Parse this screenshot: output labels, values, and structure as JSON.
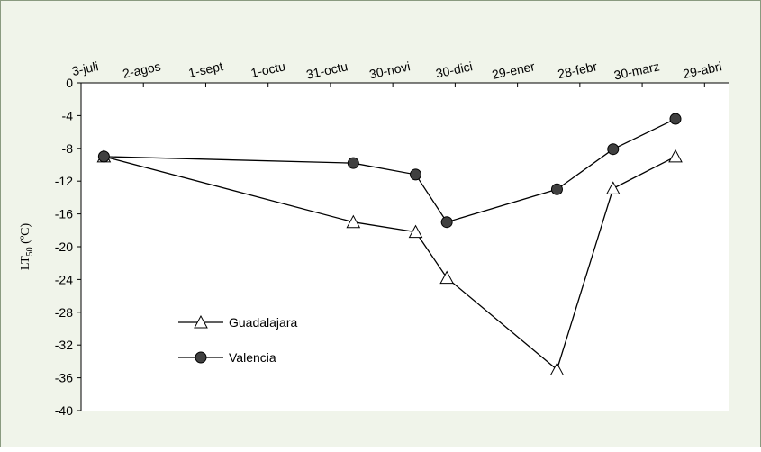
{
  "chart_data": {
    "type": "line",
    "y_label": {
      "text": "LT",
      "subscript": "50",
      "suffix": " (ºC)"
    },
    "x": [
      11,
      131,
      161,
      176,
      229,
      256,
      286
    ],
    "series": [
      {
        "name": "Guadalajara",
        "color": "#000000",
        "marker": "triangle",
        "marker_fill": "#ffffff",
        "values": [
          -9,
          -17,
          -18.2,
          -23.8,
          -35,
          -12.9,
          -9
        ]
      },
      {
        "name": "Valencia",
        "color": "#000000",
        "marker": "circle",
        "marker_fill": "#404040",
        "values": [
          -9,
          -9.8,
          -11.2,
          -17,
          -13,
          -8.1,
          -4.4
        ]
      }
    ],
    "xlim": [
      0,
      312
    ],
    "xticks": [
      {
        "value": 0,
        "label": "3-juli"
      },
      {
        "value": 30,
        "label": "2-agos"
      },
      {
        "value": 60,
        "label": "1-sept"
      },
      {
        "value": 90,
        "label": "1-octu"
      },
      {
        "value": 120,
        "label": "31-octu"
      },
      {
        "value": 150,
        "label": "30-novi"
      },
      {
        "value": 180,
        "label": "30-dici"
      },
      {
        "value": 210,
        "label": "29-ener"
      },
      {
        "value": 240,
        "label": "28-febr"
      },
      {
        "value": 270,
        "label": "30-marz"
      },
      {
        "value": 300,
        "label": "29-abri"
      }
    ],
    "ylim": [
      -40,
      0
    ],
    "yticks": [
      0,
      -4,
      -8,
      -12,
      -16,
      -20,
      -24,
      -28,
      -32,
      -36,
      -40
    ],
    "grid": false,
    "legend": "bottom-left"
  }
}
